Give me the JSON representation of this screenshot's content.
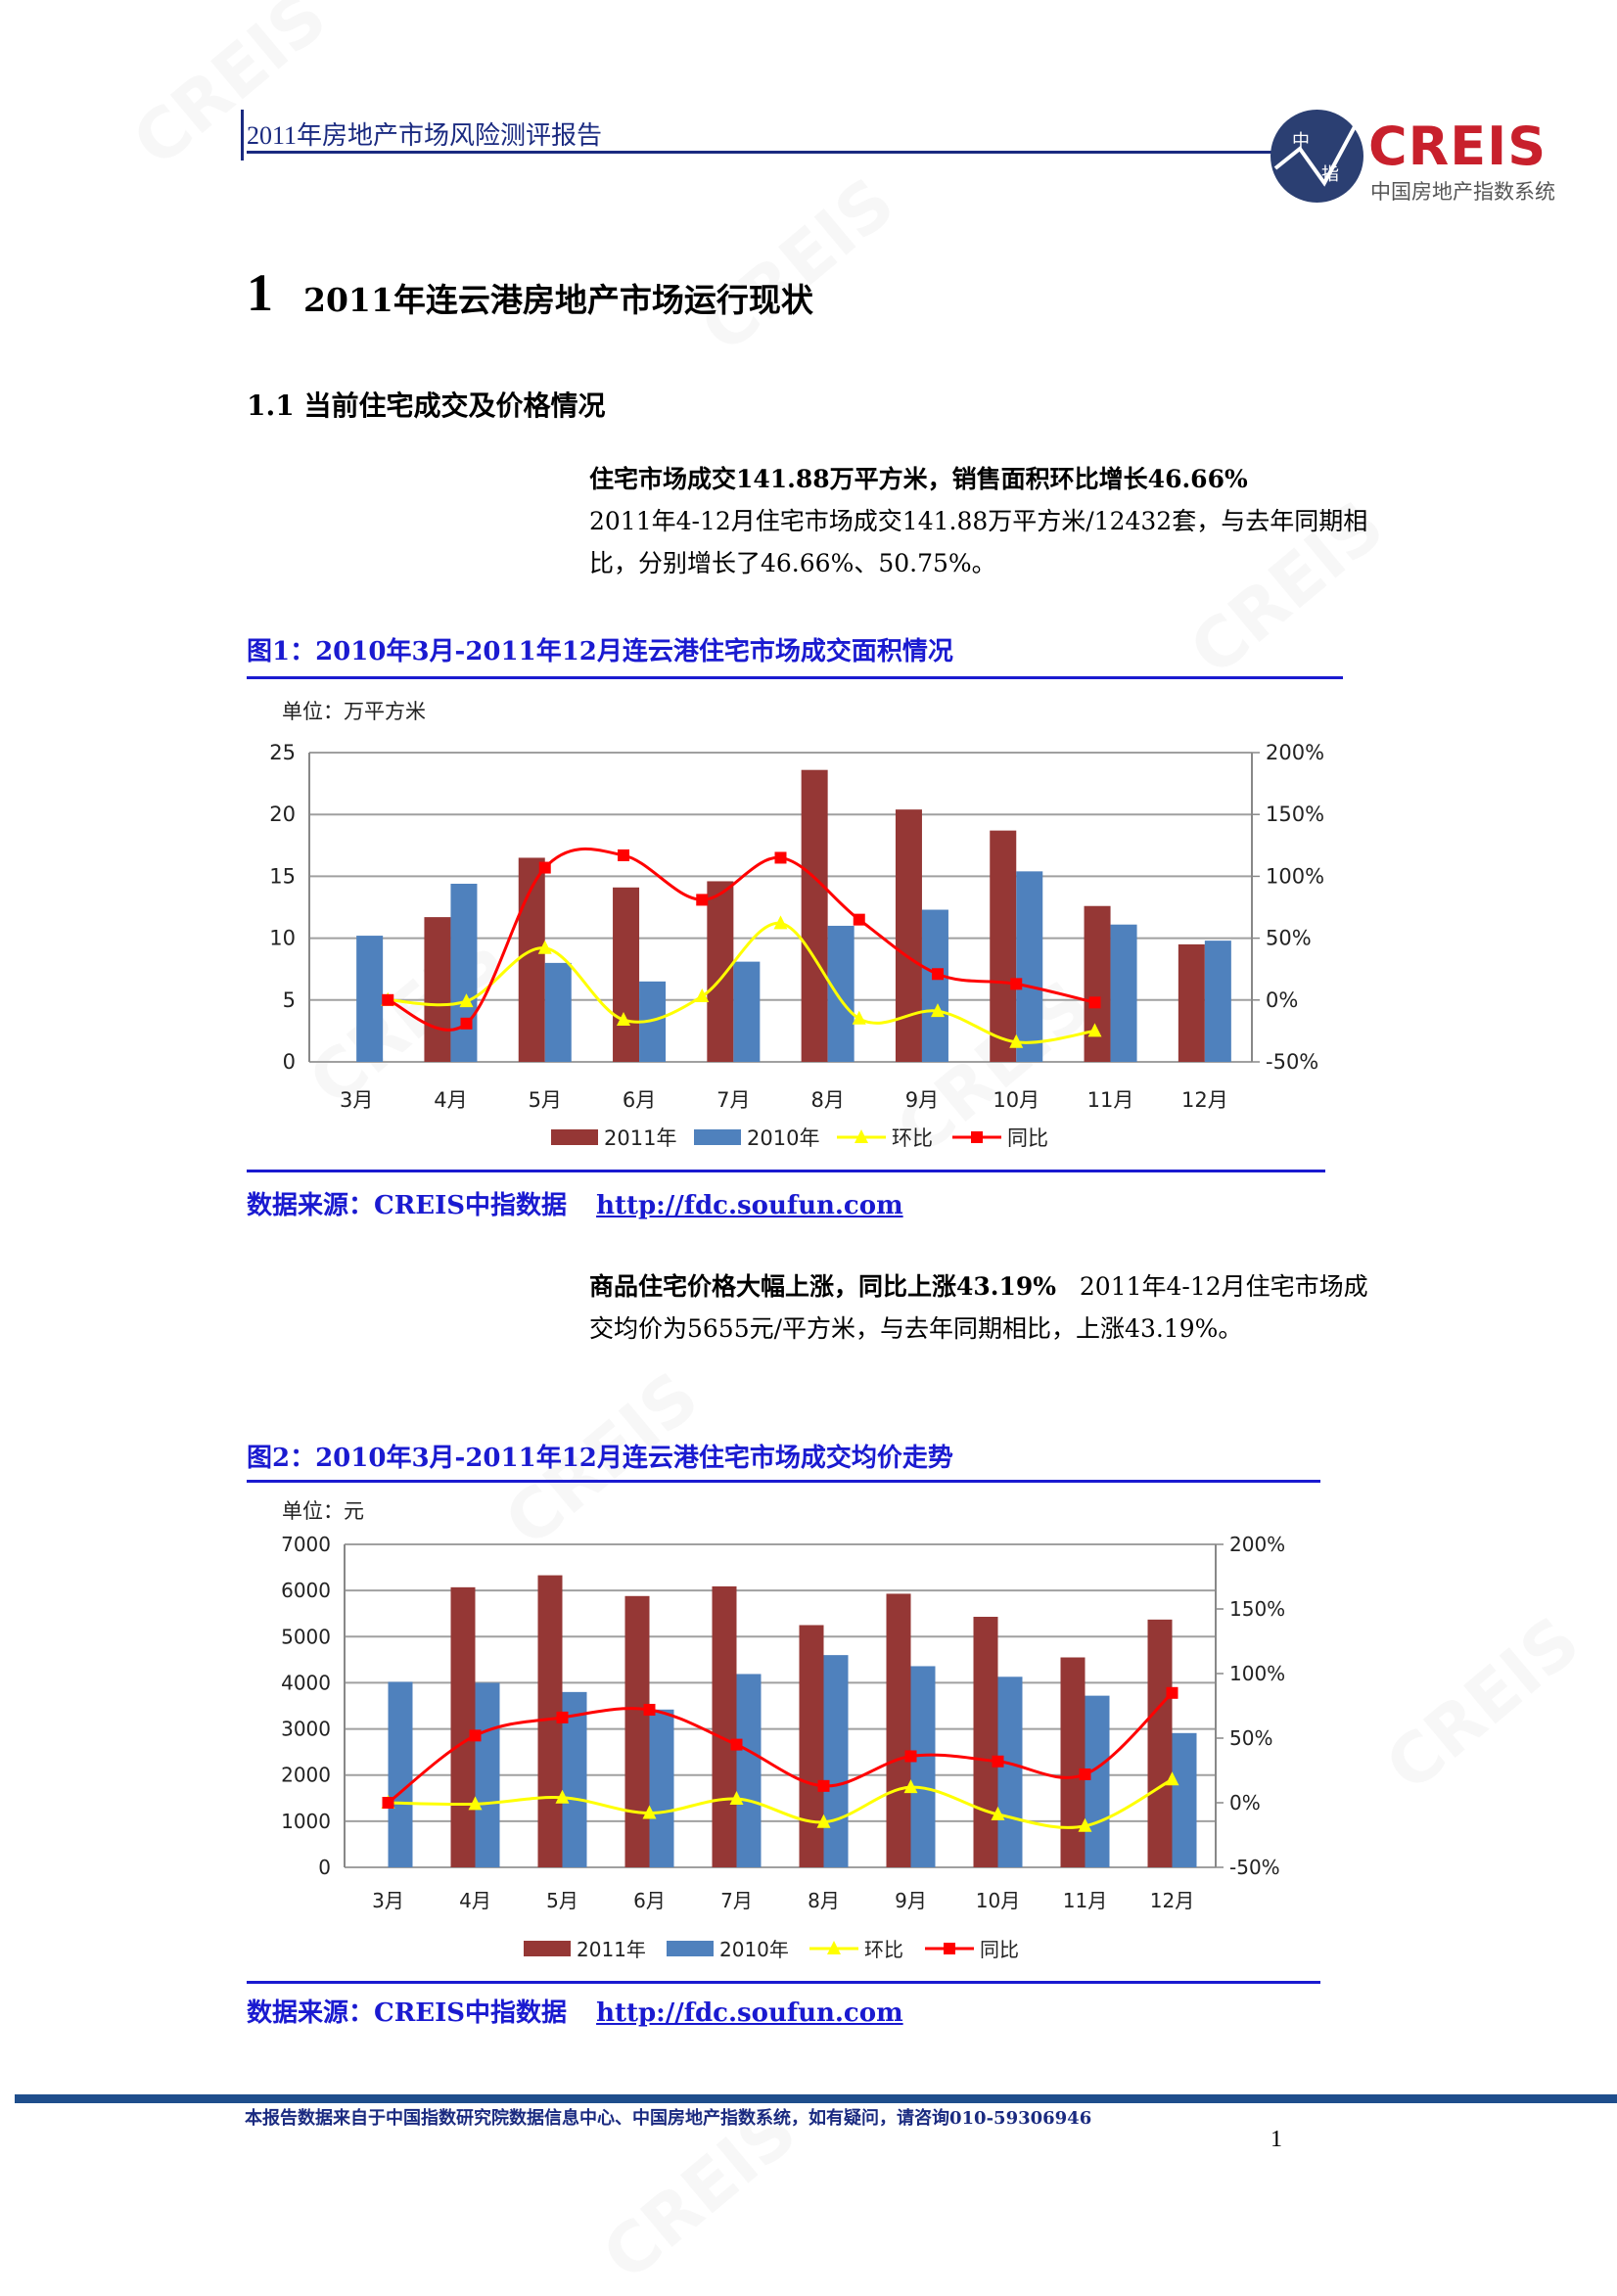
{
  "header": {
    "title": "2011年房地产市场风险测评报告",
    "logo_text": "CREIS",
    "logo_subtitle": "中国房地产指数系统",
    "logo_glyphs": [
      "中",
      "指"
    ]
  },
  "section": {
    "number": "1",
    "title": "2011年连云港房地产市场运行现状",
    "subsection": "1.1 当前住宅成交及价格情况"
  },
  "para1": {
    "lead": "住宅市场成交141.88万平方米，销售面积环比增长46.66%",
    "body": "2011年4-12月住宅市场成交141.88万平方米/12432套，与去年同期相比，分别增长了46.66%、50.75%。"
  },
  "figure1": {
    "title": "图1：2010年3月-2011年12月连云港住宅市场成交面积情况",
    "unit": "单位：万平方米",
    "source_label": "数据来源：CREIS中指数据",
    "source_link": "http://fdc.soufun.com"
  },
  "para2": {
    "lead": "商品住宅价格大幅上涨，同比上涨43.19%",
    "body": "2011年4-12月住宅市场成交均价为5655元/平方米，与去年同期相比，上涨43.19%。"
  },
  "figure2": {
    "title": "图2：2010年3月-2011年12月连云港住宅市场成交均价走势",
    "unit": "单位：元",
    "source_label": "数据来源：CREIS中指数据",
    "source_link": "http://fdc.soufun.com"
  },
  "footer": {
    "text": "本报告数据来自于中国指数研究院数据信息中心、中国房地产指数系统，如有疑问，请咨询010-59306946",
    "page": "1"
  },
  "chart_data": [
    {
      "type": "bar+line",
      "categories": [
        "3月",
        "4月",
        "5月",
        "6月",
        "7月",
        "8月",
        "9月",
        "10月",
        "11月",
        "12月"
      ],
      "ylim": [
        0,
        25
      ],
      "yticks": [
        "0",
        "5",
        "10",
        "15",
        "20",
        "25"
      ],
      "y2lim": [
        -50,
        200
      ],
      "y2ticks": [
        "-50%",
        "0%",
        "50%",
        "100%",
        "150%",
        "200%"
      ],
      "grid": true,
      "legend": "bottom",
      "line_offset": "between",
      "series": [
        {
          "name": "2011年",
          "kind": "bar",
          "axis": "left",
          "color": "#953735",
          "values": [
            null,
            11.7,
            16.5,
            14.1,
            14.6,
            23.6,
            20.4,
            18.7,
            12.6,
            9.5
          ]
        },
        {
          "name": "2010年",
          "kind": "bar",
          "axis": "left",
          "color": "#4f81bd",
          "values": [
            10.2,
            14.4,
            8.0,
            6.5,
            8.1,
            11.0,
            12.3,
            15.4,
            11.1,
            9.8
          ]
        },
        {
          "name": "环比",
          "kind": "line",
          "marker": "triangle",
          "axis": "right",
          "color": "#ffff00",
          "values": [
            0,
            -1,
            42,
            -16,
            3,
            62,
            -15,
            -9,
            -34,
            -25
          ]
        },
        {
          "name": "同比",
          "kind": "line",
          "marker": "square",
          "axis": "right",
          "color": "#ff0000",
          "values": [
            0,
            -19,
            107,
            117,
            81,
            115,
            65,
            21,
            13,
            -2
          ]
        }
      ]
    },
    {
      "type": "bar+line",
      "categories": [
        "3月",
        "4月",
        "5月",
        "6月",
        "7月",
        "8月",
        "9月",
        "10月",
        "11月",
        "12月"
      ],
      "ylim": [
        0,
        7000
      ],
      "yticks": [
        "0",
        "1000",
        "2000",
        "3000",
        "4000",
        "5000",
        "6000",
        "7000"
      ],
      "y2lim": [
        -50,
        200
      ],
      "y2ticks": [
        "-50%",
        "0%",
        "50%",
        "100%",
        "150%",
        "200%"
      ],
      "grid": true,
      "legend": "bottom",
      "line_offset": "center",
      "series": [
        {
          "name": "2011年",
          "kind": "bar",
          "axis": "left",
          "color": "#953735",
          "values": [
            null,
            6070,
            6330,
            5880,
            6090,
            5250,
            5930,
            5430,
            4550,
            5370
          ]
        },
        {
          "name": "2010年",
          "kind": "bar",
          "axis": "left",
          "color": "#4f81bd",
          "values": [
            4020,
            4000,
            3800,
            3420,
            4190,
            4600,
            4360,
            4130,
            3720,
            2910
          ]
        },
        {
          "name": "环比",
          "kind": "line",
          "marker": "triangle",
          "axis": "right",
          "color": "#ffff00",
          "values": [
            0,
            -1,
            4,
            -8,
            3,
            -15,
            12,
            -9,
            -18,
            18
          ]
        },
        {
          "name": "同比",
          "kind": "line",
          "marker": "square",
          "axis": "right",
          "color": "#ff0000",
          "values": [
            0,
            52,
            66,
            72,
            45,
            13,
            36,
            32,
            22,
            85
          ]
        }
      ]
    }
  ]
}
